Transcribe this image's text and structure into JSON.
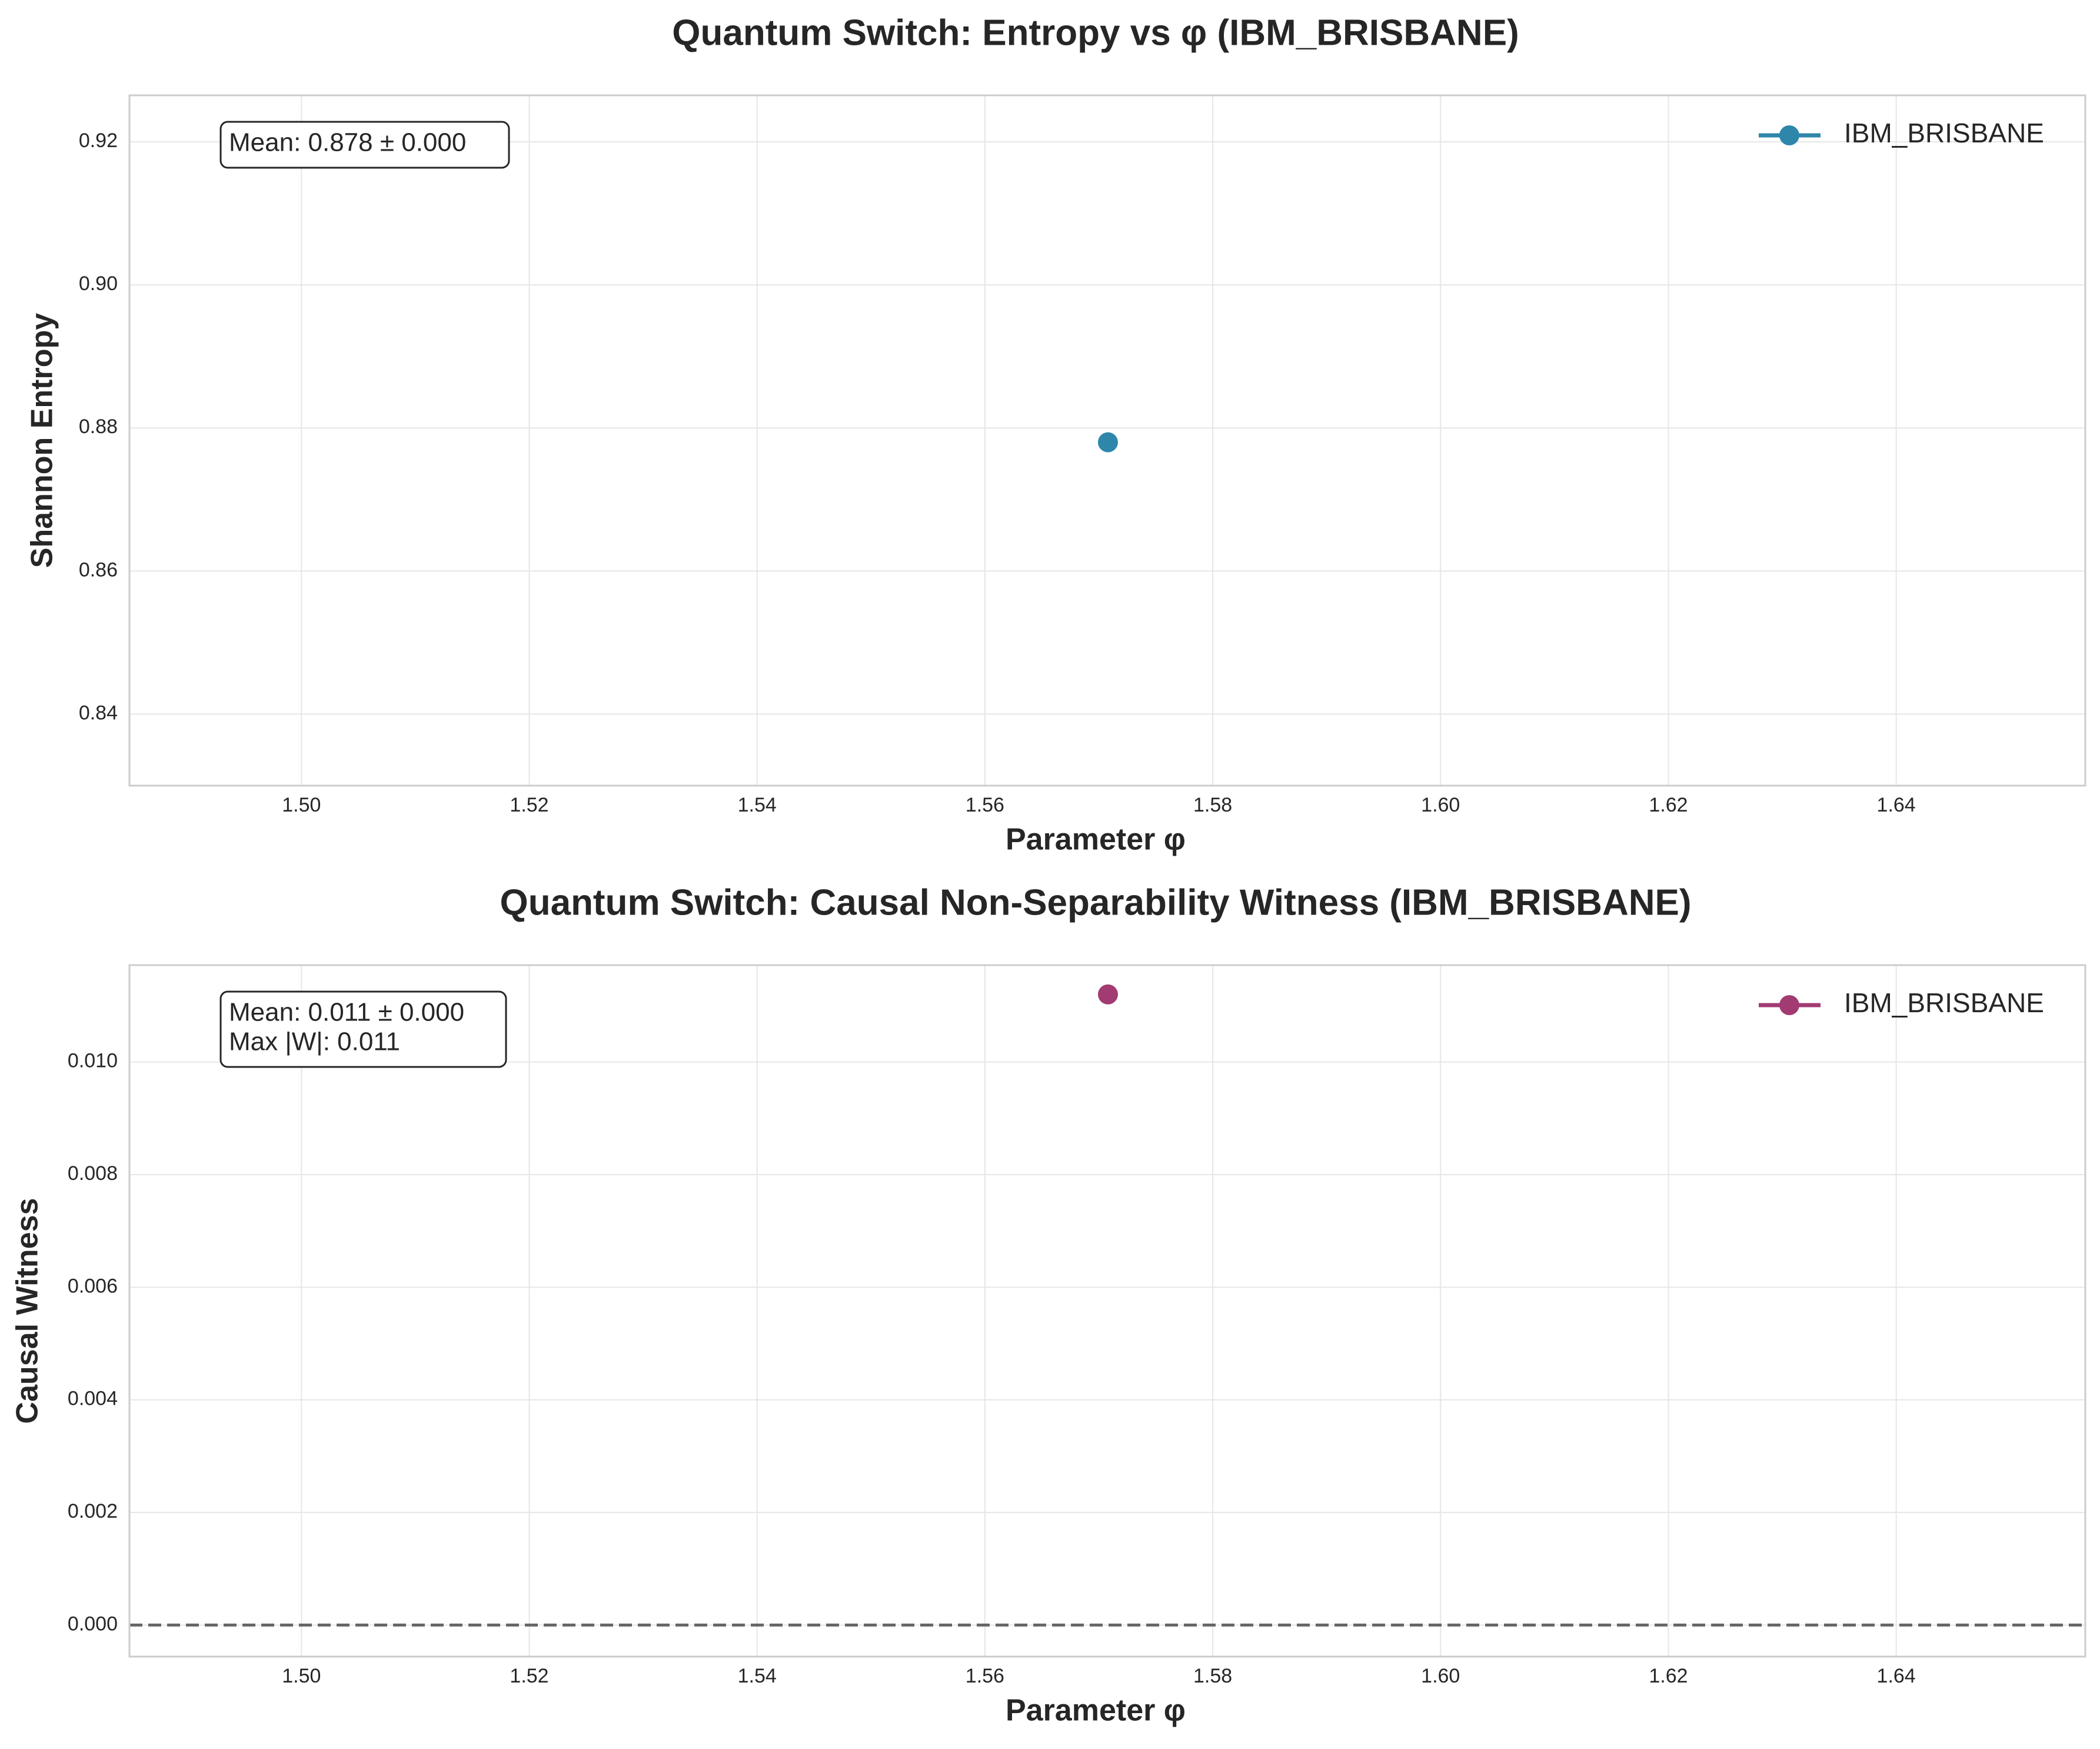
{
  "chart_data": [
    {
      "type": "scatter",
      "title": "Quantum Switch: Entropy vs φ (IBM_BRISBANE)",
      "xlabel": "Parameter φ",
      "ylabel": "Shannon Entropy",
      "xlim": [
        1.4849,
        1.6566
      ],
      "ylim": [
        0.83,
        0.9265
      ],
      "xticks": [
        1.5,
        1.52,
        1.54,
        1.56,
        1.58,
        1.6,
        1.62,
        1.64
      ],
      "xtick_labels": [
        "1.50",
        "1.52",
        "1.54",
        "1.56",
        "1.58",
        "1.60",
        "1.62",
        "1.64"
      ],
      "yticks": [
        0.84,
        0.86,
        0.88,
        0.9,
        0.92
      ],
      "ytick_labels": [
        "0.84",
        "0.86",
        "0.88",
        "0.90",
        "0.92"
      ],
      "grid": true,
      "legend_position": "top-right",
      "series": [
        {
          "name": "IBM_BRISBANE",
          "color": "#2e86ab",
          "x": [
            1.5708
          ],
          "y": [
            0.878
          ]
        }
      ],
      "annotation": [
        "Mean: 0.878 ± 0.000"
      ],
      "reference_line": null
    },
    {
      "type": "scatter",
      "title": "Quantum Switch: Causal Non-Separability Witness (IBM_BRISBANE)",
      "xlabel": "Parameter φ",
      "ylabel": "Causal Witness",
      "xlim": [
        1.4849,
        1.6566
      ],
      "ylim": [
        -0.00056,
        0.01172
      ],
      "xticks": [
        1.5,
        1.52,
        1.54,
        1.56,
        1.58,
        1.6,
        1.62,
        1.64
      ],
      "xtick_labels": [
        "1.50",
        "1.52",
        "1.54",
        "1.56",
        "1.58",
        "1.60",
        "1.62",
        "1.64"
      ],
      "yticks": [
        0.0,
        0.002,
        0.004,
        0.006,
        0.008,
        0.01
      ],
      "ytick_labels": [
        "0.000",
        "0.002",
        "0.004",
        "0.006",
        "0.008",
        "0.010"
      ],
      "grid": true,
      "legend_position": "top-right",
      "series": [
        {
          "name": "IBM_BRISBANE",
          "color": "#a23b72",
          "x": [
            1.5708
          ],
          "y": [
            0.0112
          ]
        }
      ],
      "annotation": [
        "Mean: 0.011 ± 0.000",
        "Max |W|: 0.011"
      ],
      "reference_line": {
        "y": 0,
        "style": "dashed",
        "color": "#666666"
      }
    }
  ]
}
